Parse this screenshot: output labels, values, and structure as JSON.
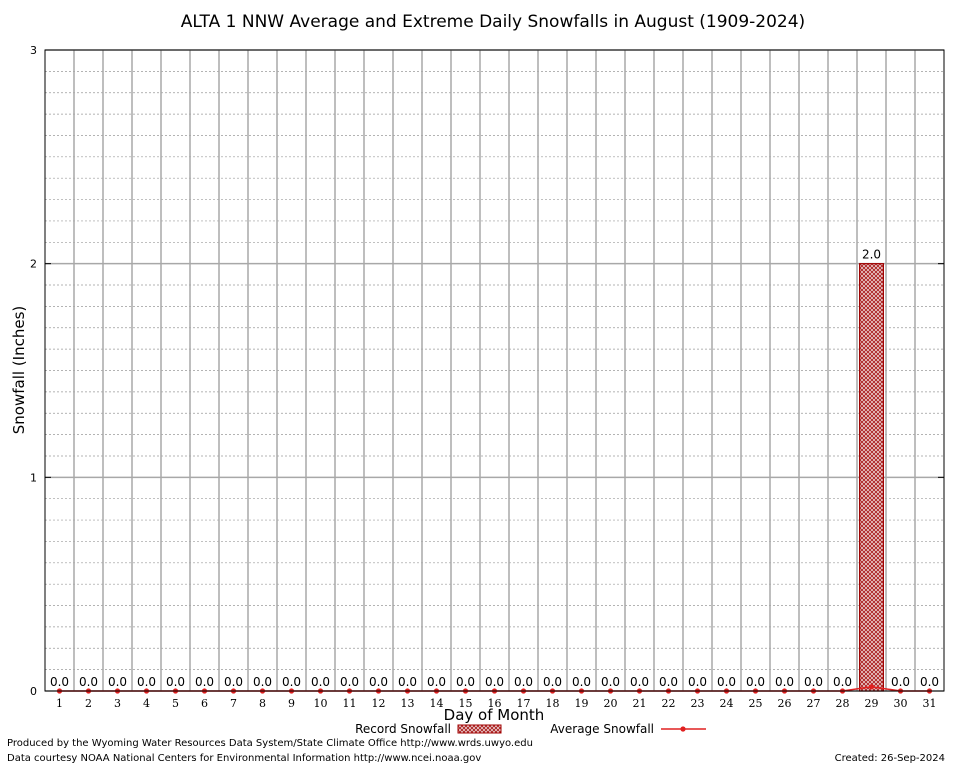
{
  "chart_data": {
    "type": "bar",
    "title": "ALTA 1 NNW Average and Extreme Daily Snowfalls in August (1909-2024)",
    "xlabel": "Day of Month",
    "ylabel": "Snowfall (Inches)",
    "ylim": [
      0,
      3
    ],
    "yticks": [
      "0",
      "1",
      "2",
      "3"
    ],
    "categories": [
      "1",
      "2",
      "3",
      "4",
      "5",
      "6",
      "7",
      "8",
      "9",
      "10",
      "11",
      "12",
      "13",
      "14",
      "15",
      "16",
      "17",
      "18",
      "19",
      "20",
      "21",
      "22",
      "23",
      "24",
      "25",
      "26",
      "27",
      "28",
      "29",
      "30",
      "31"
    ],
    "series": [
      {
        "name": "Record Snowfall",
        "kind": "bar",
        "color": "#a00000",
        "values": [
          0,
          0,
          0,
          0,
          0,
          0,
          0,
          0,
          0,
          0,
          0,
          0,
          0,
          0,
          0,
          0,
          0,
          0,
          0,
          0,
          0,
          0,
          0,
          0,
          0,
          0,
          0,
          0,
          2.0,
          0,
          0
        ],
        "labels": [
          "0.0",
          "0.0",
          "0.0",
          "0.0",
          "0.0",
          "0.0",
          "0.0",
          "0.0",
          "0.0",
          "0.0",
          "0.0",
          "0.0",
          "0.0",
          "0.0",
          "0.0",
          "0.0",
          "0.0",
          "0.0",
          "0.0",
          "0.0",
          "0.0",
          "0.0",
          "0.0",
          "0.0",
          "0.0",
          "0.0",
          "0.0",
          "0.0",
          "2.0",
          "0.0",
          "0.0"
        ]
      },
      {
        "name": "Average Snowfall",
        "kind": "line",
        "color": "#e02020",
        "values": [
          0,
          0,
          0,
          0,
          0,
          0,
          0,
          0,
          0,
          0,
          0,
          0,
          0,
          0,
          0,
          0,
          0,
          0,
          0,
          0,
          0,
          0,
          0,
          0,
          0,
          0,
          0,
          0,
          0.02,
          0,
          0
        ]
      }
    ],
    "grid": true,
    "legend": "bottom"
  },
  "footer": {
    "produced_by": "Produced by the Wyoming Water Resources Data System/State Climate Office http://www.wrds.uwyo.edu",
    "data_courtesy": "Data courtesy NOAA National Centers for Environmental Information http://www.ncei.noaa.gov",
    "created": "Created: 26-Sep-2024"
  }
}
